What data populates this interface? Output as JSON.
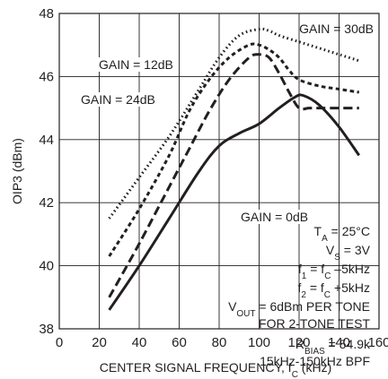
{
  "chart_data": {
    "type": "line",
    "xlabel": "CENTER SIGNAL FREQUENCY, f",
    "xlabel_sub": "C",
    "xlabel_unit": " (kHz)",
    "ylabel": "OIP3 (dBm)",
    "xlim": [
      0,
      160
    ],
    "ylim": [
      38,
      48
    ],
    "xticks": [
      0,
      20,
      40,
      60,
      80,
      100,
      120,
      140,
      160
    ],
    "yticks": [
      38,
      40,
      42,
      44,
      46,
      48
    ],
    "grid": true,
    "series": [
      {
        "name": "GAIN = 30dB",
        "style": "dotted",
        "x": [
          25,
          40,
          55,
          70,
          80,
          90,
          100,
          105,
          110,
          120,
          130,
          140,
          150
        ],
        "y": [
          41.5,
          42.8,
          44.1,
          45.6,
          46.6,
          47.3,
          47.5,
          47.45,
          47.3,
          47.1,
          46.9,
          46.7,
          46.5
        ]
      },
      {
        "name": "GAIN = 24dB",
        "style": "short-dashed",
        "x": [
          25,
          40,
          55,
          65,
          75,
          85,
          95,
          100,
          105,
          110,
          115,
          120,
          130,
          140,
          150
        ],
        "y": [
          40.3,
          41.8,
          43.5,
          44.9,
          45.9,
          46.6,
          47.0,
          47.0,
          46.85,
          46.6,
          46.2,
          45.9,
          45.7,
          45.6,
          45.5
        ]
      },
      {
        "name": "GAIN = 12dB",
        "style": "long-dashed",
        "x": [
          25,
          40,
          55,
          65,
          75,
          85,
          95,
          100,
          105,
          110,
          115,
          120,
          125,
          130,
          140,
          150
        ],
        "y": [
          39.0,
          40.7,
          42.5,
          43.7,
          44.9,
          45.9,
          46.6,
          46.7,
          46.6,
          46.1,
          45.5,
          45.0,
          45.0,
          45.0,
          45.0,
          45.0
        ]
      },
      {
        "name": "GAIN = 0dB",
        "style": "solid",
        "x": [
          25,
          40,
          55,
          70,
          80,
          90,
          100,
          110,
          118,
          122,
          130,
          140,
          150
        ],
        "y": [
          38.6,
          40.0,
          41.5,
          43.0,
          43.8,
          44.2,
          44.5,
          45.0,
          45.35,
          45.4,
          45.1,
          44.4,
          43.5
        ]
      }
    ],
    "conditions": {
      "ta": {
        "main": "T",
        "sub": "A",
        "rest": " = 25°C"
      },
      "vs": {
        "main": "V",
        "sub": "S",
        "rest": " = 3V"
      },
      "f1": {
        "main": "f",
        "sub": "1",
        "mid": " = f",
        "sub2": "C",
        "rest": " –5kHz"
      },
      "f2": {
        "main": "f",
        "sub": "2",
        "mid": " = f",
        "sub2": "C",
        "rest": " +5kHz"
      },
      "vout": {
        "main": "V",
        "sub": "OUT",
        "rest": " = 6dBm PER TONE"
      },
      "twotone": "FOR 2-TONE TEST",
      "rbias": {
        "main": "R",
        "sub": "BIAS",
        "rest": " = 54.9k"
      },
      "bpf": "15kHz-150kHz BPF"
    }
  }
}
